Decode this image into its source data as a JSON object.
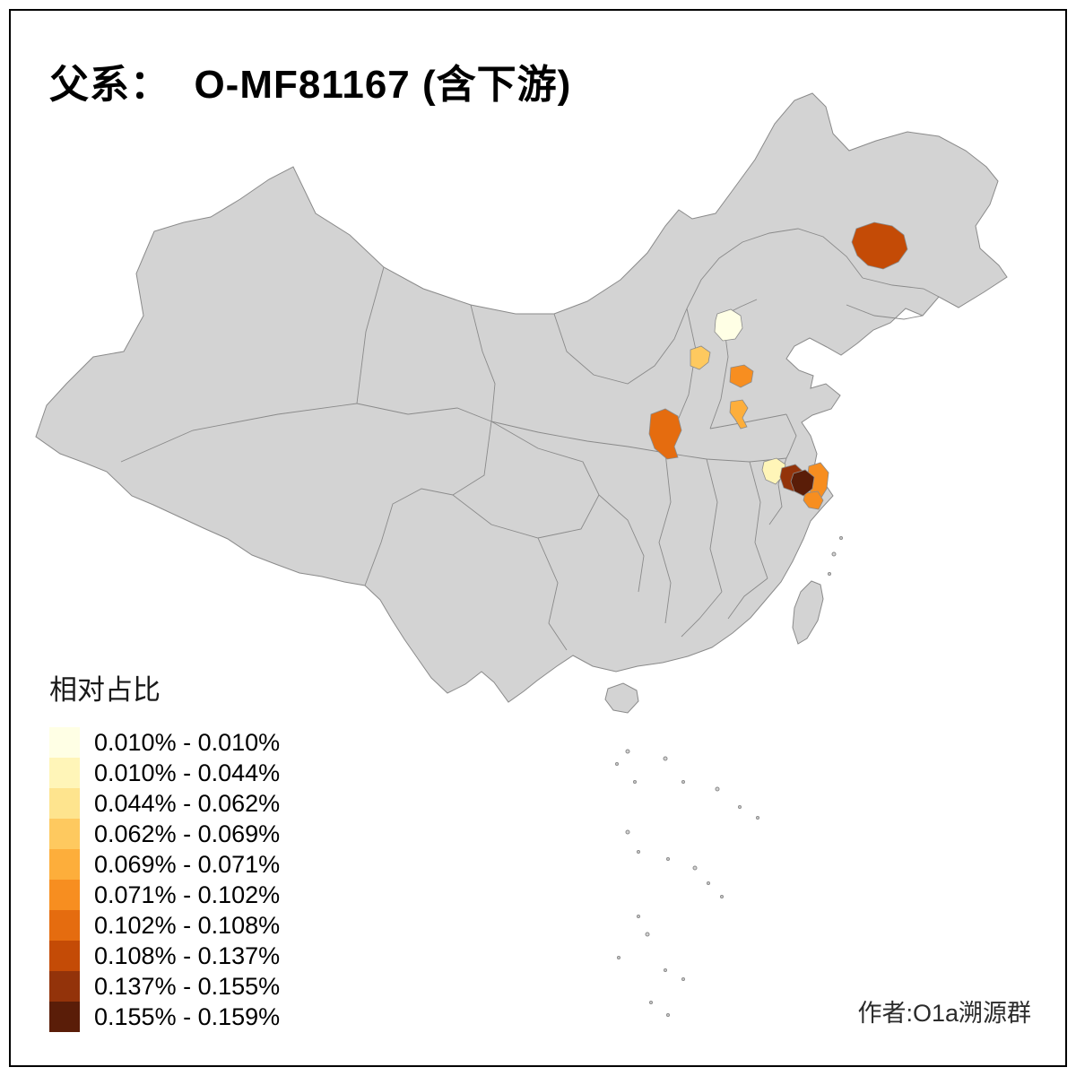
{
  "title": "父系：  O-MF81167 (含下游)",
  "author": "作者:O1a溯源群",
  "legend": {
    "title": "相对占比",
    "items": [
      {
        "range": "0.010% - 0.010%",
        "color": "#FFFFE5"
      },
      {
        "range": "0.010% - 0.044%",
        "color": "#FFF5B8"
      },
      {
        "range": "0.044% - 0.062%",
        "color": "#FEE48E"
      },
      {
        "range": "0.062% - 0.069%",
        "color": "#FEC95F"
      },
      {
        "range": "0.069% - 0.071%",
        "color": "#FDAE3B"
      },
      {
        "range": "0.071% - 0.102%",
        "color": "#F78E20"
      },
      {
        "range": "0.102% - 0.108%",
        "color": "#E56C0F"
      },
      {
        "range": "0.108% - 0.137%",
        "color": "#C44B06"
      },
      {
        "range": "0.137% - 0.155%",
        "color": "#93330A"
      },
      {
        "range": "0.155% - 0.159%",
        "color": "#5A1D08"
      }
    ]
  },
  "map": {
    "base_fill": "#d3d3d3",
    "border_color": "#8a8a8a",
    "background": "#ffffff",
    "regions": [
      {
        "id": "northeast-harbin",
        "class_index": 7
      },
      {
        "id": "beijing",
        "class_index": 0
      },
      {
        "id": "shanxi-patch",
        "class_index": 3
      },
      {
        "id": "hebei-shandong-patch",
        "class_index": 5
      },
      {
        "id": "henan-patch",
        "class_index": 4
      },
      {
        "id": "shaanxi-patch",
        "class_index": 6
      },
      {
        "id": "jiangsu-pale",
        "class_index": 1
      },
      {
        "id": "jiangsu-orange",
        "class_index": 5
      },
      {
        "id": "jiangsu-south-orange",
        "class_index": 5
      },
      {
        "id": "jiangsu-darkred",
        "class_index": 8
      },
      {
        "id": "jiangsu-darkest",
        "class_index": 9
      }
    ]
  }
}
